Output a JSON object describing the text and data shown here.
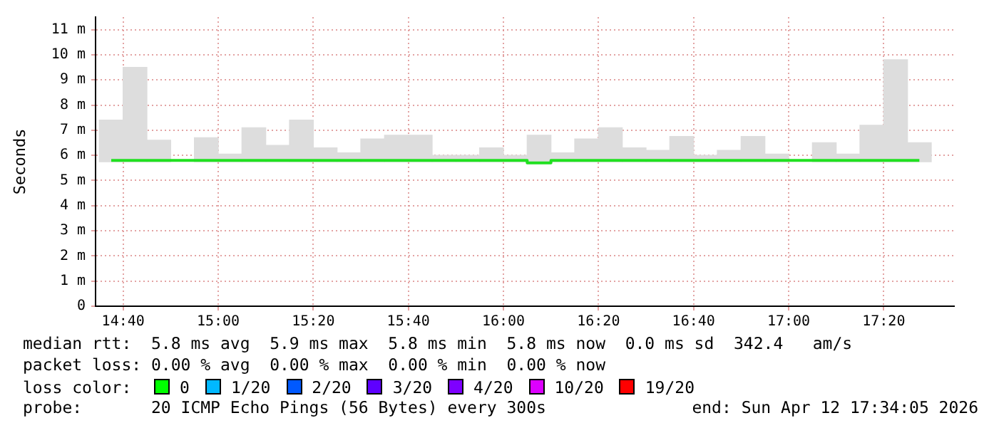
{
  "chart_data": {
    "type": "bar",
    "ylabel": "Seconds",
    "xlim": [
      14.57,
      17.58
    ],
    "ylim": [
      0,
      11.5
    ],
    "xticks": [
      {
        "value": 14.6667,
        "label": "14:40"
      },
      {
        "value": 15,
        "label": "15:00"
      },
      {
        "value": 15.3333,
        "label": "15:20"
      },
      {
        "value": 15.6667,
        "label": "15:40"
      },
      {
        "value": 16,
        "label": "16:00"
      },
      {
        "value": 16.3333,
        "label": "16:20"
      },
      {
        "value": 16.6667,
        "label": "16:40"
      },
      {
        "value": 17,
        "label": "17:00"
      },
      {
        "value": 17.3333,
        "label": "17:20"
      }
    ],
    "yticks": [
      0,
      {
        "value": 1,
        "label": "1 m"
      },
      {
        "value": 2,
        "label": "2 m"
      },
      {
        "value": 3,
        "label": "3 m"
      },
      {
        "value": 4,
        "label": "4 m"
      },
      {
        "value": 5,
        "label": "5 m"
      },
      {
        "value": 6,
        "label": "6 m"
      },
      {
        "value": 7,
        "label": "7 m"
      },
      {
        "value": 8,
        "label": "8 m"
      },
      {
        "value": 9,
        "label": "9 m"
      },
      {
        "value": 10,
        "label": "10 m"
      },
      {
        "value": 11,
        "label": "11 m"
      }
    ],
    "grid": true,
    "x": [
      14.625,
      14.7083,
      14.7917,
      14.875,
      14.9583,
      15.0417,
      15.125,
      15.2083,
      15.2917,
      15.375,
      15.4583,
      15.5417,
      15.625,
      15.7083,
      15.7917,
      15.875,
      15.9583,
      16.0417,
      16.125,
      16.2083,
      16.2917,
      16.375,
      16.4583,
      16.5417,
      16.625,
      16.7083,
      16.7917,
      16.875,
      16.9583,
      17.0417,
      17.125,
      17.2083,
      17.2917,
      17.375,
      17.4583
    ],
    "series": [
      {
        "color": "#dddddd",
        "base": [
          5.75,
          5.75,
          5.75,
          null,
          5.75,
          5.75,
          5.75,
          5.75,
          5.75,
          5.75,
          5.75,
          5.75,
          5.75,
          5.75,
          5.75,
          5.75,
          5.75,
          5.75,
          5.75,
          5.75,
          5.75,
          5.75,
          5.75,
          5.75,
          5.75,
          5.75,
          5.75,
          5.75,
          5.75,
          null,
          5.75,
          5.75,
          5.75,
          5.75,
          5.75
        ],
        "values": [
          1.65,
          3.75,
          0.85,
          null,
          0.95,
          0.3,
          1.35,
          0.65,
          1.65,
          0.55,
          0.35,
          0.9,
          1.05,
          1.05,
          0.25,
          0.25,
          0.55,
          0.25,
          1.05,
          0.35,
          0.9,
          1.35,
          0.55,
          0.45,
          1.0,
          0.25,
          0.45,
          1.0,
          0.3,
          null,
          0.75,
          0.3,
          1.45,
          4.05,
          0.75
        ]
      },
      {
        "type": "step",
        "color": "#20e020",
        "values": [
          5.8,
          5.8,
          5.8,
          5.8,
          5.8,
          5.8,
          5.8,
          5.8,
          5.8,
          5.8,
          5.8,
          5.8,
          5.8,
          5.8,
          5.8,
          5.8,
          5.8,
          5.8,
          5.7,
          5.8,
          5.8,
          5.8,
          5.8,
          5.8,
          5.8,
          5.8,
          5.8,
          5.8,
          5.8,
          5.8,
          5.8,
          5.8,
          5.8,
          5.8,
          5.8
        ]
      }
    ],
    "annotations": [
      "median rtt:  5.8 ms avg  5.9 ms max  5.8 ms min  5.8 ms now  0.0 ms sd  342.4   am/s",
      "packet loss: 0.00 % avg  0.00 % max  0.00 % min  0.00 % now",
      "loss color:",
      "0",
      "1/20",
      "2/20",
      "3/20",
      "4/20",
      "10/20",
      "19/20",
      "probe:       20 ICMP Echo Pings (56 Bytes) every 300s",
      "end: Sun Apr 12 17:34:05 2026"
    ]
  }
}
